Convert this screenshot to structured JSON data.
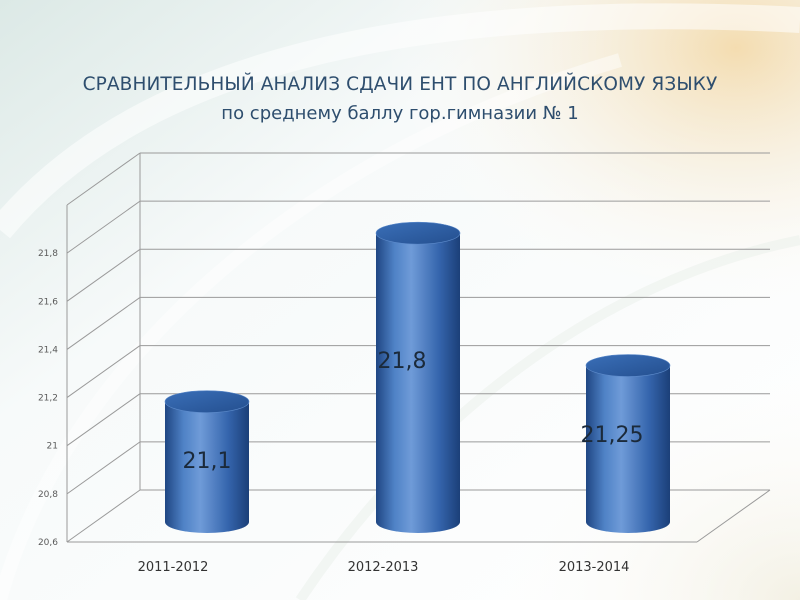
{
  "page": {
    "title": "СРАВНИТЕЛЬНЫЙ АНАЛИЗ СДАЧИ ЕНТ ПО АНГЛИЙСКОМУ ЯЗЫКУ",
    "subtitle": "по среднему баллу гор.гимназии № 1"
  },
  "chart_data": {
    "type": "bar",
    "style": "3d-cylinder",
    "categories": [
      "2011-2012",
      "2012-2013",
      "2013-2014"
    ],
    "values": [
      21.1,
      21.8,
      21.25
    ],
    "data_labels": [
      "21,1",
      "21,8",
      "21,25"
    ],
    "yticks": [
      "20,6",
      "20,8",
      "21",
      "21,2",
      "21,4",
      "21,6",
      "21,8"
    ],
    "ylim": [
      20.6,
      21.8
    ],
    "grid": true,
    "legend": "none",
    "colors": {
      "bar": "#3a6fb8",
      "bar_light": "#6f9bd8",
      "bar_dark": "#1f4683",
      "bar_top": "#2c5a9c",
      "grid": "#9a9a9a",
      "axis_text": "#5a5a5a",
      "label": "#1b2a3a",
      "title": "#2e4e6e"
    }
  }
}
